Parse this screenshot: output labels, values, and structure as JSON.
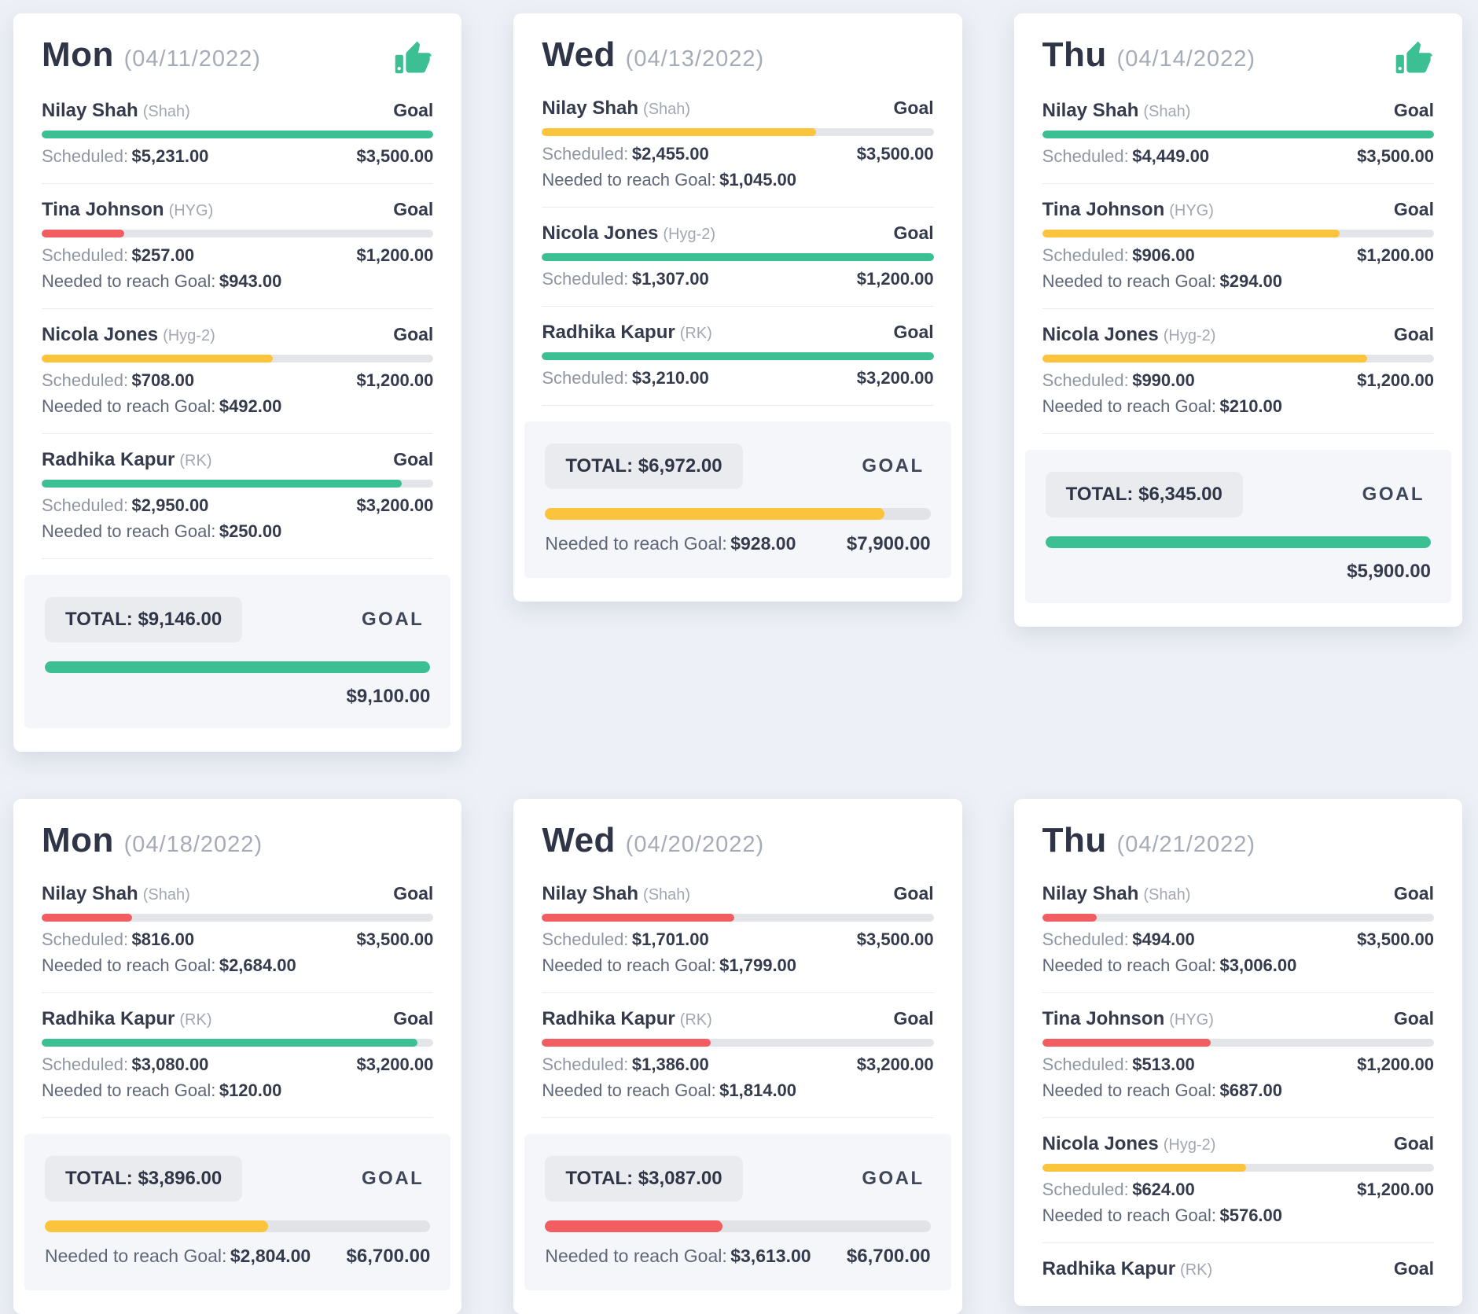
{
  "page": {
    "background": "#edf0f6"
  },
  "labels": {
    "goal": "Goal",
    "goal_caps": "GOAL",
    "scheduled": "Scheduled:",
    "needed": "Needed to reach Goal:",
    "total": "TOTAL:"
  },
  "colors": {
    "green": "#3cbf92",
    "yellow": "#fcc33c",
    "red": "#f15d60",
    "track": "#e3e5e9"
  },
  "icons": {
    "thumbs_up": "thumbs-up-icon"
  },
  "cards": [
    {
      "day": "Mon",
      "date": "(04/11/2022)",
      "thumbs_up": true,
      "providers": [
        {
          "name": "Nilay Shah",
          "tag": "(Shah)",
          "scheduled": "$5,231.00",
          "goal": "$3,500.00",
          "needed": null,
          "pct": 100,
          "color": "green"
        },
        {
          "name": "Tina Johnson",
          "tag": "(HYG)",
          "scheduled": "$257.00",
          "goal": "$1,200.00",
          "needed": "$943.00",
          "pct": 21,
          "color": "red"
        },
        {
          "name": "Nicola Jones",
          "tag": "(Hyg-2)",
          "scheduled": "$708.00",
          "goal": "$1,200.00",
          "needed": "$492.00",
          "pct": 59,
          "color": "yellow"
        },
        {
          "name": "Radhika Kapur",
          "tag": "(RK)",
          "scheduled": "$2,950.00",
          "goal": "$3,200.00",
          "needed": "$250.00",
          "pct": 92,
          "color": "green"
        }
      ],
      "total": {
        "value": "$9,146.00",
        "goal": "$9,100.00",
        "needed": null,
        "pct": 100,
        "color": "green"
      }
    },
    {
      "day": "Wed",
      "date": "(04/13/2022)",
      "thumbs_up": false,
      "providers": [
        {
          "name": "Nilay Shah",
          "tag": "(Shah)",
          "scheduled": "$2,455.00",
          "goal": "$3,500.00",
          "needed": "$1,045.00",
          "pct": 70,
          "color": "yellow"
        },
        {
          "name": "Nicola Jones",
          "tag": "(Hyg-2)",
          "scheduled": "$1,307.00",
          "goal": "$1,200.00",
          "needed": null,
          "pct": 100,
          "color": "green"
        },
        {
          "name": "Radhika Kapur",
          "tag": "(RK)",
          "scheduled": "$3,210.00",
          "goal": "$3,200.00",
          "needed": null,
          "pct": 100,
          "color": "green"
        }
      ],
      "total": {
        "value": "$6,972.00",
        "goal": "$7,900.00",
        "needed": "$928.00",
        "pct": 88,
        "color": "yellow"
      }
    },
    {
      "day": "Thu",
      "date": "(04/14/2022)",
      "thumbs_up": true,
      "providers": [
        {
          "name": "Nilay Shah",
          "tag": "(Shah)",
          "scheduled": "$4,449.00",
          "goal": "$3,500.00",
          "needed": null,
          "pct": 100,
          "color": "green"
        },
        {
          "name": "Tina Johnson",
          "tag": "(HYG)",
          "scheduled": "$906.00",
          "goal": "$1,200.00",
          "needed": "$294.00",
          "pct": 76,
          "color": "yellow"
        },
        {
          "name": "Nicola Jones",
          "tag": "(Hyg-2)",
          "scheduled": "$990.00",
          "goal": "$1,200.00",
          "needed": "$210.00",
          "pct": 83,
          "color": "yellow"
        }
      ],
      "total": {
        "value": "$6,345.00",
        "goal": "$5,900.00",
        "needed": null,
        "pct": 100,
        "color": "green"
      }
    },
    {
      "day": "Mon",
      "date": "(04/18/2022)",
      "thumbs_up": false,
      "providers": [
        {
          "name": "Nilay Shah",
          "tag": "(Shah)",
          "scheduled": "$816.00",
          "goal": "$3,500.00",
          "needed": "$2,684.00",
          "pct": 23,
          "color": "red"
        },
        {
          "name": "Radhika Kapur",
          "tag": "(RK)",
          "scheduled": "$3,080.00",
          "goal": "$3,200.00",
          "needed": "$120.00",
          "pct": 96,
          "color": "green"
        }
      ],
      "total": {
        "value": "$3,896.00",
        "goal": "$6,700.00",
        "needed": "$2,804.00",
        "pct": 58,
        "color": "yellow"
      }
    },
    {
      "day": "Wed",
      "date": "(04/20/2022)",
      "thumbs_up": false,
      "providers": [
        {
          "name": "Nilay Shah",
          "tag": "(Shah)",
          "scheduled": "$1,701.00",
          "goal": "$3,500.00",
          "needed": "$1,799.00",
          "pct": 49,
          "color": "red"
        },
        {
          "name": "Radhika Kapur",
          "tag": "(RK)",
          "scheduled": "$1,386.00",
          "goal": "$3,200.00",
          "needed": "$1,814.00",
          "pct": 43,
          "color": "red"
        }
      ],
      "total": {
        "value": "$3,087.00",
        "goal": "$6,700.00",
        "needed": "$3,613.00",
        "pct": 46,
        "color": "red"
      }
    },
    {
      "day": "Thu",
      "date": "(04/21/2022)",
      "thumbs_up": false,
      "providers": [
        {
          "name": "Nilay Shah",
          "tag": "(Shah)",
          "scheduled": "$494.00",
          "goal": "$3,500.00",
          "needed": "$3,006.00",
          "pct": 14,
          "color": "red"
        },
        {
          "name": "Tina Johnson",
          "tag": "(HYG)",
          "scheduled": "$513.00",
          "goal": "$1,200.00",
          "needed": "$687.00",
          "pct": 43,
          "color": "red"
        },
        {
          "name": "Nicola Jones",
          "tag": "(Hyg-2)",
          "scheduled": "$624.00",
          "goal": "$1,200.00",
          "needed": "$576.00",
          "pct": 52,
          "color": "yellow"
        },
        {
          "name": "Radhika Kapur",
          "tag": "(RK)",
          "partial": true
        }
      ],
      "total": null
    }
  ]
}
